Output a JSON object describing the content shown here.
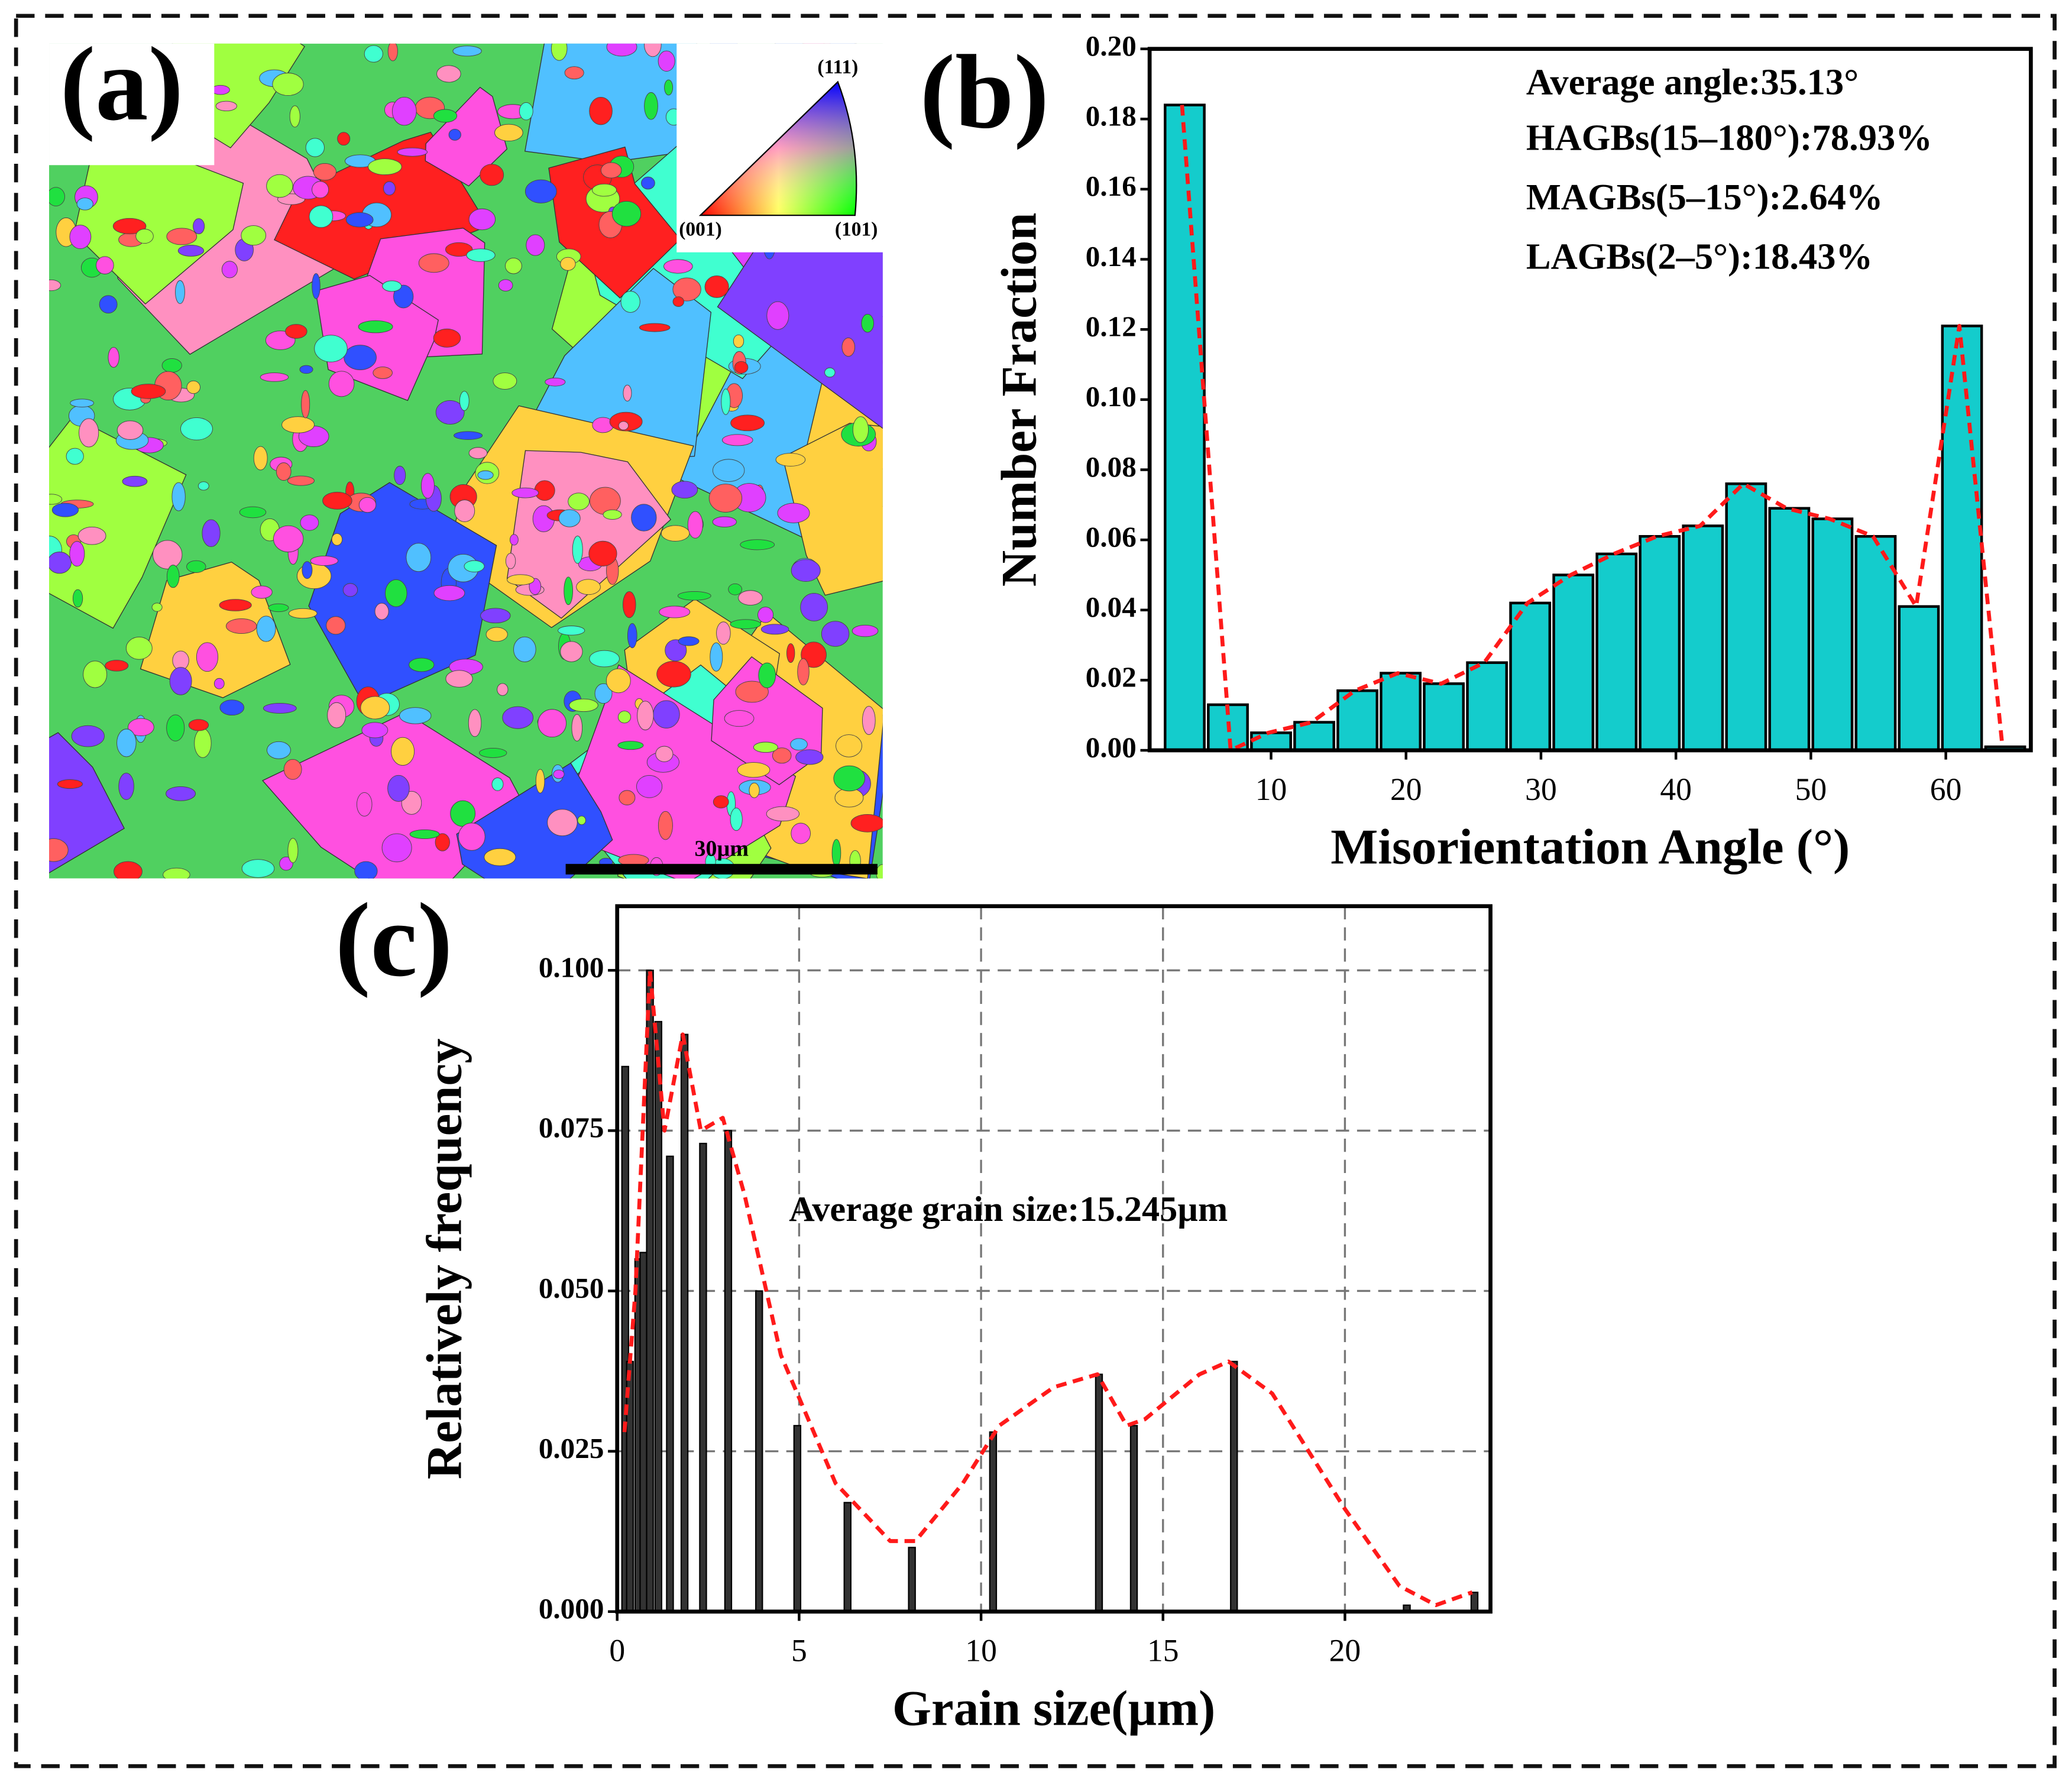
{
  "panel_a": {
    "label": "(a)",
    "scale_bar": "30µm",
    "ipf_labels": [
      "(111)",
      "(001)",
      "(101)"
    ]
  },
  "chart_data": [
    {
      "type": "histogram",
      "panel_label": "(b)",
      "xlabel": "Misorientation Angle (°)",
      "ylabel": "Number Fraction",
      "annotations": [
        "Average angle:35.13°",
        "HAGBs(15–180°):78.93%",
        "MAGBs(5–15°):2.64%",
        "LAGBs(2–5°):18.43%"
      ],
      "bins": [
        2,
        5.2,
        8.4,
        11.6,
        14.8,
        18,
        21.2,
        24.4,
        27.6,
        30.8,
        34,
        37.2,
        40.4,
        43.6,
        46.8,
        50,
        53.2,
        56.4,
        59.6,
        62.8,
        66
      ],
      "values": [
        0.184,
        0.013,
        0.005,
        0.008,
        0.017,
        0.022,
        0.019,
        0.025,
        0.042,
        0.05,
        0.056,
        0.061,
        0.064,
        0.076,
        0.069,
        0.066,
        0.061,
        0.041,
        0.121,
        0.001
      ],
      "color": "#14cccc",
      "fit_line": {
        "color": "#ff1a1a",
        "x": [
          3.4,
          7,
          9.8,
          13,
          16.2,
          19.4,
          22.6,
          25.8,
          29,
          32.2,
          35.4,
          38.6,
          41.8,
          45,
          48.2,
          51.4,
          54.6,
          57.8,
          61,
          64.2
        ],
        "values": [
          0.184,
          0.0,
          0.005,
          0.008,
          0.017,
          0.022,
          0.019,
          0.025,
          0.042,
          0.05,
          0.056,
          0.061,
          0.064,
          0.076,
          0.069,
          0.066,
          0.061,
          0.041,
          0.121,
          0.001
        ]
      },
      "xlim": [
        1,
        66.3
      ],
      "ylim": [
        0,
        0.2
      ],
      "xticks": [
        10,
        20,
        30,
        40,
        50,
        60
      ],
      "yticks": [
        {
          "value": 0,
          "label": "0.00"
        },
        {
          "value": 0.02,
          "label": "0.02"
        },
        {
          "value": 0.04,
          "label": "0.04"
        },
        {
          "value": 0.06,
          "label": "0.06"
        },
        {
          "value": 0.08,
          "label": "0.08"
        },
        {
          "value": 0.1,
          "label": "0.10"
        },
        {
          "value": 0.12,
          "label": "0.12"
        },
        {
          "value": 0.14,
          "label": "0.14"
        },
        {
          "value": 0.16,
          "label": "0.16"
        },
        {
          "value": 0.18,
          "label": "0.18"
        },
        {
          "value": 0.2,
          "label": "0.20"
        }
      ],
      "grid": false
    },
    {
      "type": "bar",
      "panel_label": "(c)",
      "xlabel": "Grain size(µm)",
      "ylabel": "Relatively frequency",
      "annotations": [
        "Average grain size:15.245µm"
      ],
      "x": [
        0.22,
        0.35,
        0.58,
        0.72,
        0.9,
        1.13,
        1.45,
        1.85,
        2.36,
        3.05,
        3.9,
        4.95,
        6.33,
        8.1,
        10.33,
        13.24,
        14.2,
        16.95,
        21.7,
        23.56
      ],
      "values": [
        0.085,
        0.039,
        0.055,
        0.056,
        0.1,
        0.092,
        0.071,
        0.09,
        0.073,
        0.075,
        0.05,
        0.029,
        0.017,
        0.01,
        0.028,
        0.037,
        0.029,
        0.039,
        0.001,
        0.003
      ],
      "color": "#333333",
      "fit_line": {
        "color": "#ff1a1a",
        "x": [
          0.2,
          0.5,
          0.9,
          1.3,
          1.8,
          2.3,
          2.9,
          3.5,
          4.5,
          6,
          7.5,
          8.2,
          9.5,
          10.5,
          12,
          13.2,
          14,
          14.5,
          16,
          16.8,
          18,
          20,
          21.5,
          22.5,
          23.5
        ],
        "values": [
          0.028,
          0.05,
          0.1,
          0.075,
          0.09,
          0.075,
          0.077,
          0.065,
          0.04,
          0.02,
          0.011,
          0.011,
          0.02,
          0.029,
          0.035,
          0.037,
          0.029,
          0.03,
          0.037,
          0.039,
          0.034,
          0.016,
          0.004,
          0.001,
          0.003
        ]
      },
      "xlim": [
        0,
        24
      ],
      "ylim": [
        0,
        0.11
      ],
      "xticks": [
        0,
        5,
        10,
        15,
        20
      ],
      "yticks": [
        {
          "value": 0,
          "label": "0.000"
        },
        {
          "value": 0.025,
          "label": "0.025"
        },
        {
          "value": 0.05,
          "label": "0.050"
        },
        {
          "value": 0.075,
          "label": "0.075"
        },
        {
          "value": 0.1,
          "label": "0.100"
        }
      ],
      "grid": true
    }
  ]
}
